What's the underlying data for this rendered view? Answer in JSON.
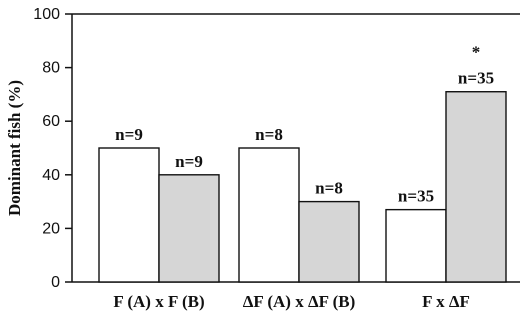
{
  "chart_data": {
    "type": "bar",
    "ylabel": "Dominant fish (%)",
    "ylim": [
      0,
      100
    ],
    "yticks": [
      0,
      20,
      40,
      60,
      80,
      100
    ],
    "categories": [
      "F (A) x F (B)",
      "ΔF (A) x ΔF (B)",
      "F x ΔF"
    ],
    "series": [
      {
        "values": [
          50,
          50,
          27
        ],
        "labels": [
          "n=9",
          "n=8",
          "n=35"
        ],
        "fill": "#ffffff"
      },
      {
        "values": [
          40,
          30,
          71
        ],
        "labels": [
          "n=9",
          "n=8",
          "n=35"
        ],
        "fill": "#d6d6d6"
      }
    ],
    "annotations": [
      {
        "text": "*",
        "category_index": 2,
        "series_index": 1
      }
    ],
    "grid": false
  }
}
